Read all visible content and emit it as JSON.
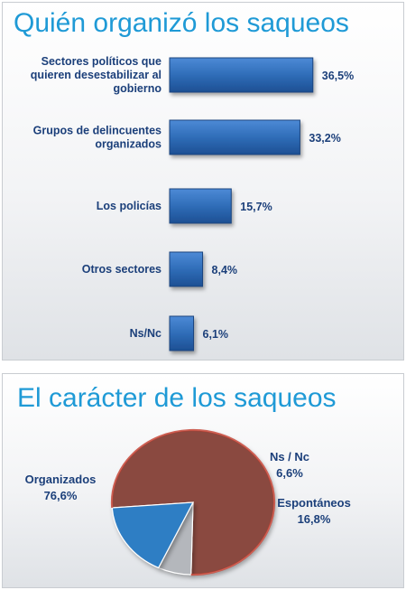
{
  "chart_data": [
    {
      "type": "bar",
      "orientation": "horizontal",
      "title": "Quién organizó los saqueos",
      "categories": [
        "Sectores políticos que quieren desestabilizar al gobierno",
        "Grupos de delincuentes organizados",
        "Los policías",
        "Otros sectores",
        "Ns/Nc"
      ],
      "category_lines": [
        [
          "Sectores políticos que",
          "quieren desestabilizar al",
          "gobierno"
        ],
        [
          "Grupos de delincuentes",
          "organizados"
        ],
        [
          "Los policías"
        ],
        [
          "Otros sectores"
        ],
        [
          "Ns/Nc"
        ]
      ],
      "values": [
        36.5,
        33.2,
        15.7,
        8.4,
        6.1
      ],
      "value_labels": [
        "36,5%",
        "33,2%",
        "15,7%",
        "8,4%",
        "6,1%"
      ],
      "bar_color": "#2f6db8",
      "grid": false
    },
    {
      "type": "pie",
      "title": "El carácter de los saqueos",
      "slices": [
        {
          "label": "Organizados",
          "value": 76.6,
          "value_label": "76,6%",
          "color": "#8a4a40"
        },
        {
          "label": "Ns / Nc",
          "value": 6.6,
          "value_label": "6,6%",
          "color": "#b4b7bc"
        },
        {
          "label": "Espontáneos",
          "value": 16.8,
          "value_label": "16,8%",
          "color": "#2f7ec4"
        }
      ]
    }
  ]
}
